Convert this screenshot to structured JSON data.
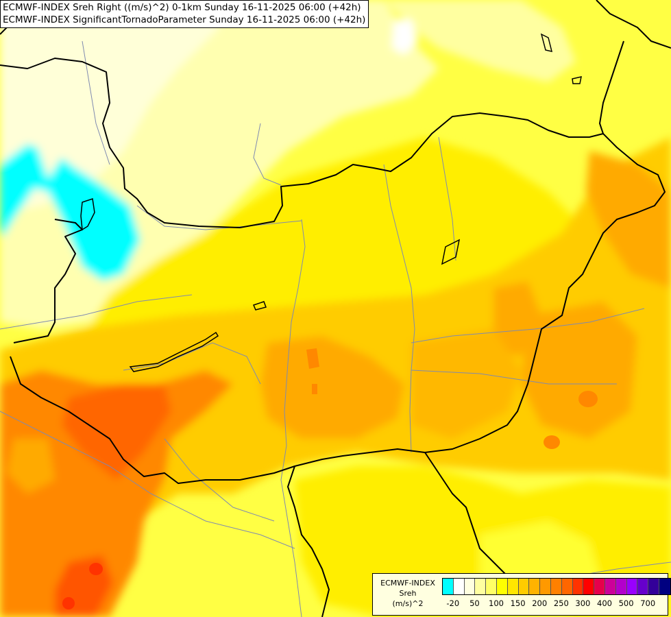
{
  "header": {
    "line1": "ECMWF-INDEX Sreh Right ((m/s)^2) 0-1km Sunday 16-11-2025 06:00 (+42h)",
    "line2": "ECMWF-INDEX SignificantTornadoParameter Sunday 16-11-2025 06:00 (+42h)"
  },
  "legend": {
    "title_lines": [
      "ECMWF-INDEX",
      "Sreh",
      "(m/s)^2"
    ],
    "colors": [
      "#00ffff",
      "#ffffff",
      "#ffffe0",
      "#ffffa0",
      "#ffff66",
      "#ffff00",
      "#ffe600",
      "#ffcc00",
      "#ffb300",
      "#ff9900",
      "#ff8000",
      "#ff6600",
      "#ff3300",
      "#ff0000",
      "#e6004c",
      "#cc0099",
      "#b300cc",
      "#9900ff",
      "#6600cc",
      "#330099",
      "#000080"
    ],
    "ticks": [
      {
        "label": "-20",
        "index": 0
      },
      {
        "label": "50",
        "index": 2
      },
      {
        "label": "100",
        "index": 4
      },
      {
        "label": "150",
        "index": 6
      },
      {
        "label": "200",
        "index": 8
      },
      {
        "label": "250",
        "index": 10
      },
      {
        "label": "300",
        "index": 12
      },
      {
        "label": "400",
        "index": 14
      },
      {
        "label": "500",
        "index": 16
      },
      {
        "label": "700",
        "index": 18
      }
    ]
  }
}
